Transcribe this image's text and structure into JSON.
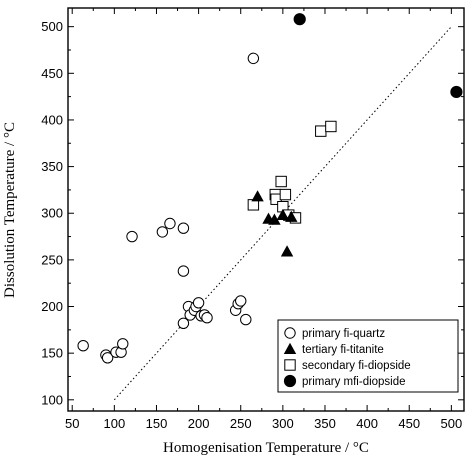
{
  "chart_data": {
    "type": "scatter",
    "xlabel": "Homogenisation Temperature  /  °C",
    "ylabel": "Dissolution Temperature  /  °C",
    "xlim": [
      45,
      515
    ],
    "ylim": [
      88,
      520
    ],
    "xticks": [
      50,
      100,
      150,
      200,
      250,
      300,
      350,
      400,
      450,
      500
    ],
    "yticks": [
      100,
      150,
      200,
      250,
      300,
      350,
      400,
      450,
      500
    ],
    "grid": false,
    "legend_position": "bottom-right",
    "reference_line": {
      "style": "dotted",
      "from": [
        100,
        100
      ],
      "to": [
        500,
        500
      ]
    },
    "series": [
      {
        "name": "primary fi-quartz",
        "marker": "open-circle",
        "points": [
          [
            63,
            158
          ],
          [
            90,
            148
          ],
          [
            92,
            145
          ],
          [
            102,
            151
          ],
          [
            108,
            151
          ],
          [
            110,
            160
          ],
          [
            121,
            275
          ],
          [
            157,
            280
          ],
          [
            166,
            289
          ],
          [
            182,
            284
          ],
          [
            182,
            238
          ],
          [
            182,
            182
          ],
          [
            188,
            200
          ],
          [
            190,
            191
          ],
          [
            195,
            196
          ],
          [
            197,
            200
          ],
          [
            200,
            204
          ],
          [
            203,
            190
          ],
          [
            207,
            191
          ],
          [
            210,
            188
          ],
          [
            244,
            196
          ],
          [
            247,
            203
          ],
          [
            250,
            206
          ],
          [
            256,
            186
          ],
          [
            265,
            466
          ]
        ]
      },
      {
        "name": "tertiary fi-titanite",
        "marker": "filled-triangle",
        "points": [
          [
            270,
            318
          ],
          [
            283,
            294
          ],
          [
            290,
            293
          ],
          [
            300,
            298
          ],
          [
            305,
            259
          ],
          [
            310,
            296
          ]
        ]
      },
      {
        "name": "secondary fi-diopside",
        "marker": "open-square",
        "points": [
          [
            265,
            309
          ],
          [
            291,
            320
          ],
          [
            292,
            315
          ],
          [
            298,
            334
          ],
          [
            300,
            307
          ],
          [
            303,
            320
          ],
          [
            307,
            298
          ],
          [
            315,
            295
          ],
          [
            345,
            388
          ],
          [
            357,
            393
          ]
        ]
      },
      {
        "name": "primary mfi-diopside",
        "marker": "filled-circle",
        "points": [
          [
            320,
            508
          ],
          [
            506,
            430
          ]
        ]
      }
    ]
  }
}
